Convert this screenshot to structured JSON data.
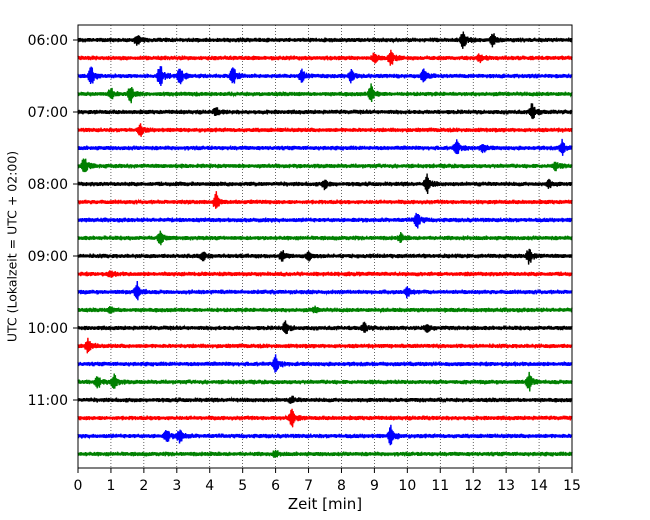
{
  "chart_data": {
    "type": "line",
    "title": "",
    "xlabel": "Zeit  [min]",
    "ylabel": "UTC (Lokalzeit = UTC + 02:00)",
    "xlim": [
      0,
      15
    ],
    "x_ticks": [
      0,
      1,
      2,
      3,
      4,
      5,
      6,
      7,
      8,
      9,
      10,
      11,
      12,
      13,
      14,
      15
    ],
    "grid": "vertical, dotted",
    "y_tick_labels": [
      "06:00",
      "07:00",
      "08:00",
      "09:00",
      "10:00",
      "11:00"
    ],
    "trace_interval_min": 15,
    "color_cycle": [
      "#000000",
      "#ff0000",
      "#0000ff",
      "#008000"
    ],
    "traces": [
      {
        "start": "06:00",
        "events": [
          [
            1.8,
            0.5
          ],
          [
            11.7,
            1.0
          ],
          [
            12.6,
            0.8
          ]
        ]
      },
      {
        "start": "06:15",
        "events": [
          [
            9.0,
            0.5
          ],
          [
            9.5,
            1.0
          ],
          [
            12.2,
            0.4
          ]
        ]
      },
      {
        "start": "06:30",
        "events": [
          [
            0.4,
            1.0
          ],
          [
            2.5,
            1.3
          ],
          [
            3.1,
            1.0
          ],
          [
            4.7,
            1.1
          ],
          [
            6.8,
            0.7
          ],
          [
            8.3,
            0.7
          ],
          [
            10.5,
            0.7
          ]
        ]
      },
      {
        "start": "06:45",
        "events": [
          [
            1.0,
            0.6
          ],
          [
            1.6,
            0.9
          ],
          [
            8.9,
            1.0
          ]
        ]
      },
      {
        "start": "07:00",
        "events": [
          [
            4.2,
            0.4
          ],
          [
            13.8,
            1.0
          ]
        ]
      },
      {
        "start": "07:15",
        "events": [
          [
            1.9,
            0.6
          ]
        ]
      },
      {
        "start": "07:30",
        "events": [
          [
            11.5,
            0.8
          ],
          [
            12.3,
            0.5
          ],
          [
            14.7,
            0.8
          ]
        ]
      },
      {
        "start": "07:45",
        "events": [
          [
            0.2,
            1.1
          ],
          [
            14.5,
            0.5
          ]
        ]
      },
      {
        "start": "08:00",
        "events": [
          [
            7.5,
            0.5
          ],
          [
            10.6,
            1.1
          ],
          [
            14.3,
            0.4
          ]
        ]
      },
      {
        "start": "08:15",
        "events": [
          [
            4.2,
            1.0
          ]
        ]
      },
      {
        "start": "08:30",
        "events": [
          [
            10.3,
            0.9
          ]
        ]
      },
      {
        "start": "08:45",
        "events": [
          [
            2.5,
            0.7
          ],
          [
            9.8,
            0.4
          ]
        ]
      },
      {
        "start": "09:00",
        "events": [
          [
            3.8,
            0.5
          ],
          [
            6.2,
            0.6
          ],
          [
            7.0,
            0.4
          ],
          [
            13.7,
            0.9
          ]
        ]
      },
      {
        "start": "09:15",
        "events": [
          [
            1.0,
            0.3
          ]
        ]
      },
      {
        "start": "09:30",
        "events": [
          [
            1.8,
            1.0
          ],
          [
            10.0,
            0.6
          ]
        ]
      },
      {
        "start": "09:45",
        "events": [
          [
            1.0,
            0.3
          ],
          [
            7.2,
            0.3
          ]
        ]
      },
      {
        "start": "10:00",
        "events": [
          [
            6.3,
            0.7
          ],
          [
            8.7,
            0.5
          ],
          [
            10.6,
            0.5
          ]
        ]
      },
      {
        "start": "10:15",
        "events": [
          [
            0.3,
            0.8
          ]
        ]
      },
      {
        "start": "10:30",
        "events": [
          [
            6.0,
            0.9
          ]
        ]
      },
      {
        "start": "10:45",
        "events": [
          [
            0.6,
            0.7
          ],
          [
            1.1,
            0.9
          ],
          [
            13.7,
            1.0
          ]
        ]
      },
      {
        "start": "11:00",
        "events": [
          [
            6.5,
            0.3
          ]
        ]
      },
      {
        "start": "11:15",
        "events": [
          [
            6.5,
            1.0
          ]
        ]
      },
      {
        "start": "11:30",
        "events": [
          [
            2.7,
            0.7
          ],
          [
            3.1,
            0.8
          ],
          [
            9.5,
            1.1
          ]
        ]
      },
      {
        "start": "11:45",
        "events": [
          [
            6.0,
            0.3
          ]
        ]
      }
    ]
  }
}
